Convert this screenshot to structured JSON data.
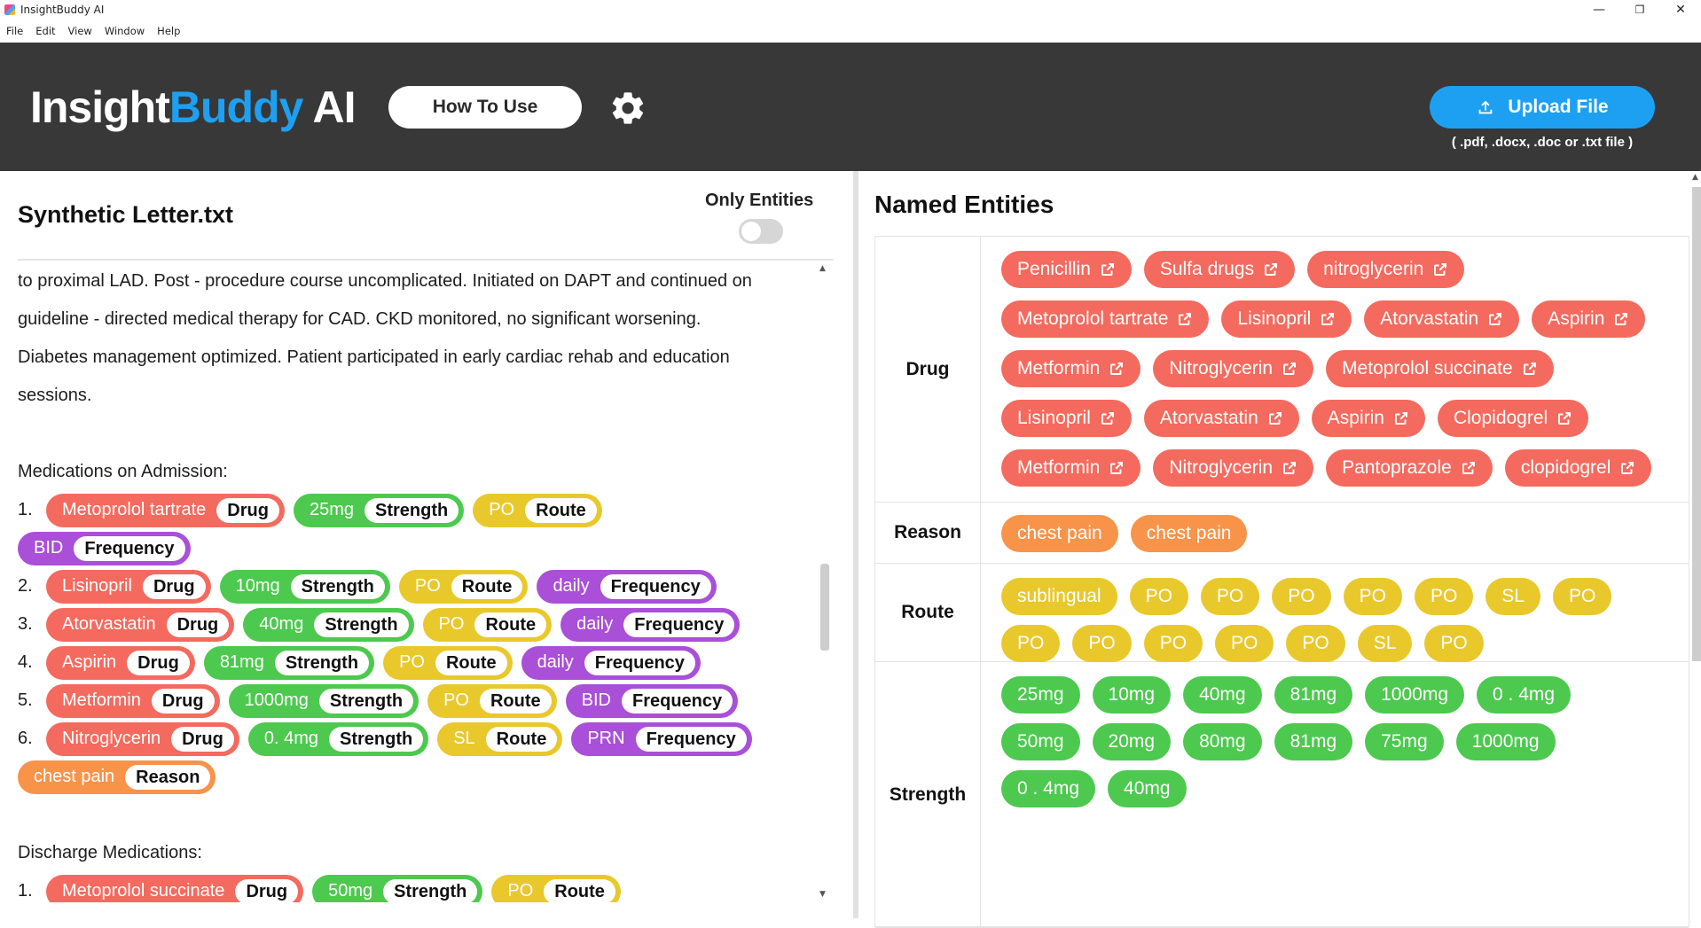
{
  "window": {
    "title": "InsightBuddy AI",
    "controls": {
      "minimize": "—",
      "maximize": "❐",
      "close": "✕"
    }
  },
  "menu": [
    "File",
    "Edit",
    "View",
    "Window",
    "Help"
  ],
  "header": {
    "logo_part1": "Insight",
    "logo_part2": "Buddy",
    "logo_part3": " AI",
    "how_to_use": "How To Use",
    "upload_label": "Upload File",
    "upload_hint": "( .pdf, .docx, .doc or .txt file )",
    "icons": [
      "gear-icon",
      "upload-icon"
    ]
  },
  "colors": {
    "header_bg": "#383838",
    "accent": "#1ea0f2",
    "drug": "#f46a5e",
    "strength": "#4cc94e",
    "route": "#e9c82c",
    "frequency": "#aa4fd8",
    "reason": "#f8934a"
  },
  "document": {
    "title": "Synthetic Letter.txt",
    "toggle_label": "Only Entities",
    "toggle_on": false,
    "paragraph_lines": [
      "to proximal LAD. Post - procedure course uncomplicated. Initiated on DAPT and continued on",
      "guideline - directed medical therapy for CAD. CKD monitored, no significant worsening.",
      "Diabetes management optimized. Patient participated in early cardiac rehab and education",
      "sessions."
    ],
    "admission_heading": "Medications on Admission:",
    "discharge_heading": "Discharge Medications:",
    "admission_meds": [
      {
        "num": "1.",
        "chips": [
          {
            "text": "Metoprolol tartrate",
            "tag": "Drug",
            "color": "red"
          },
          {
            "text": "25mg",
            "tag": "Strength",
            "color": "green"
          },
          {
            "text": "PO",
            "tag": "Route",
            "color": "yellow"
          },
          {
            "text": "BID",
            "tag": "Frequency",
            "color": "purple"
          }
        ]
      },
      {
        "num": "2.",
        "chips": [
          {
            "text": "Lisinopril",
            "tag": "Drug",
            "color": "red"
          },
          {
            "text": "10mg",
            "tag": "Strength",
            "color": "green"
          },
          {
            "text": "PO",
            "tag": "Route",
            "color": "yellow"
          },
          {
            "text": "daily",
            "tag": "Frequency",
            "color": "purple"
          }
        ]
      },
      {
        "num": "3.",
        "chips": [
          {
            "text": "Atorvastatin",
            "tag": "Drug",
            "color": "red"
          },
          {
            "text": "40mg",
            "tag": "Strength",
            "color": "green"
          },
          {
            "text": "PO",
            "tag": "Route",
            "color": "yellow"
          },
          {
            "text": "daily",
            "tag": "Frequency",
            "color": "purple"
          }
        ]
      },
      {
        "num": "4.",
        "chips": [
          {
            "text": "Aspirin",
            "tag": "Drug",
            "color": "red"
          },
          {
            "text": "81mg",
            "tag": "Strength",
            "color": "green"
          },
          {
            "text": "PO",
            "tag": "Route",
            "color": "yellow"
          },
          {
            "text": "daily",
            "tag": "Frequency",
            "color": "purple"
          }
        ]
      },
      {
        "num": "5.",
        "chips": [
          {
            "text": "Metformin",
            "tag": "Drug",
            "color": "red"
          },
          {
            "text": "1000mg",
            "tag": "Strength",
            "color": "green"
          },
          {
            "text": "PO",
            "tag": "Route",
            "color": "yellow"
          },
          {
            "text": "BID",
            "tag": "Frequency",
            "color": "purple"
          }
        ]
      },
      {
        "num": "6.",
        "chips": [
          {
            "text": "Nitroglycerin",
            "tag": "Drug",
            "color": "red"
          },
          {
            "text": "0. 4mg",
            "tag": "Strength",
            "color": "green"
          },
          {
            "text": "SL",
            "tag": "Route",
            "color": "yellow"
          },
          {
            "text": "PRN",
            "tag": "Frequency",
            "color": "purple"
          }
        ]
      }
    ],
    "reason_chip": {
      "text": "chest pain",
      "tag": "Reason",
      "color": "orange"
    },
    "discharge_meds": [
      {
        "num": "1.",
        "chips": [
          {
            "text": "Metoprolol succinate",
            "tag": "Drug",
            "color": "red"
          },
          {
            "text": "50mg",
            "tag": "Strength",
            "color": "green"
          },
          {
            "text": "PO",
            "tag": "Route",
            "color": "yellow"
          }
        ]
      }
    ]
  },
  "entities": {
    "title": "Named Entities",
    "rows": [
      {
        "label": "Drug",
        "color": "red",
        "link": true,
        "items": [
          "Penicillin",
          "Sulfa drugs",
          "nitroglycerin",
          "Metoprolol tartrate",
          "Lisinopril",
          "Atorvastatin",
          "Aspirin",
          "Metformin",
          "Nitroglycerin",
          "Metoprolol succinate",
          "Lisinopril",
          "Atorvastatin",
          "Aspirin",
          "Clopidogrel",
          "Metformin",
          "Nitroglycerin",
          "Pantoprazole",
          "clopidogrel"
        ]
      },
      {
        "label": "Reason",
        "color": "orange",
        "link": false,
        "items": [
          "chest pain",
          "chest pain"
        ]
      },
      {
        "label": "Route",
        "color": "yellow",
        "link": false,
        "items": [
          "sublingual",
          "PO",
          "PO",
          "PO",
          "PO",
          "PO",
          "SL",
          "PO",
          "PO",
          "PO",
          "PO",
          "PO",
          "PO",
          "SL",
          "PO"
        ]
      },
      {
        "label": "Strength",
        "color": "green",
        "link": false,
        "items": [
          "25mg",
          "10mg",
          "40mg",
          "81mg",
          "1000mg",
          "0 . 4mg",
          "50mg",
          "20mg",
          "80mg",
          "81mg",
          "75mg",
          "1000mg",
          "0 . 4mg",
          "40mg"
        ]
      }
    ]
  }
}
